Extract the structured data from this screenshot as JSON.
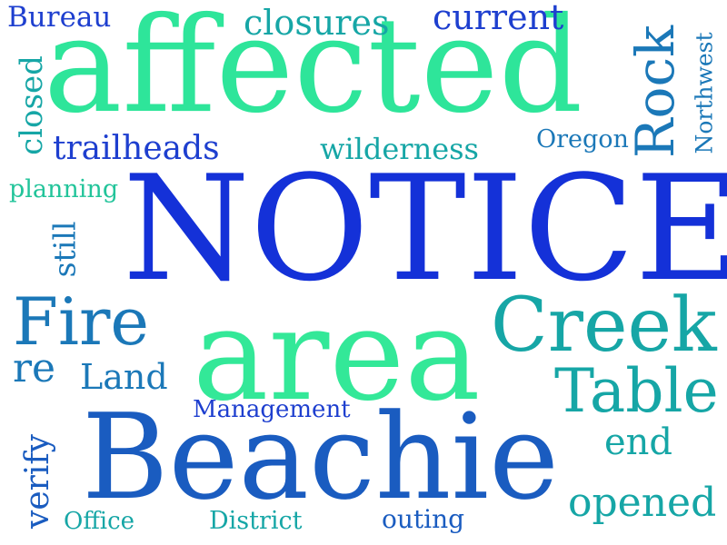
{
  "words": {
    "notice": "NOTICE",
    "affected": "affected",
    "area": "area",
    "beachie": "Beachie",
    "creek": "Creek",
    "table": "Table",
    "fire": "Fire",
    "rock": "Rock",
    "opened": "opened",
    "end": "end",
    "re": "re",
    "land": "Land",
    "management": "Management",
    "office": "Office",
    "district": "District",
    "outing": "outing",
    "bureau": "Bureau",
    "closures": "closures",
    "current": "current",
    "trailheads": "trailheads",
    "wilderness": "wilderness",
    "oregon": "Oregon",
    "northwest": "Northwest",
    "closed": "closed",
    "planning": "planning",
    "still": "still",
    "verify": "verify"
  },
  "colors": {
    "blue": "#1431d8",
    "navy": "#1e3fcf",
    "mid_blue": "#1a5cc0",
    "steel_blue": "#1b78b8",
    "teal": "#16a6a6",
    "teal_green": "#22c49a",
    "green": "#2ee59a",
    "mint": "#33e898",
    "background": "#ffffff"
  }
}
